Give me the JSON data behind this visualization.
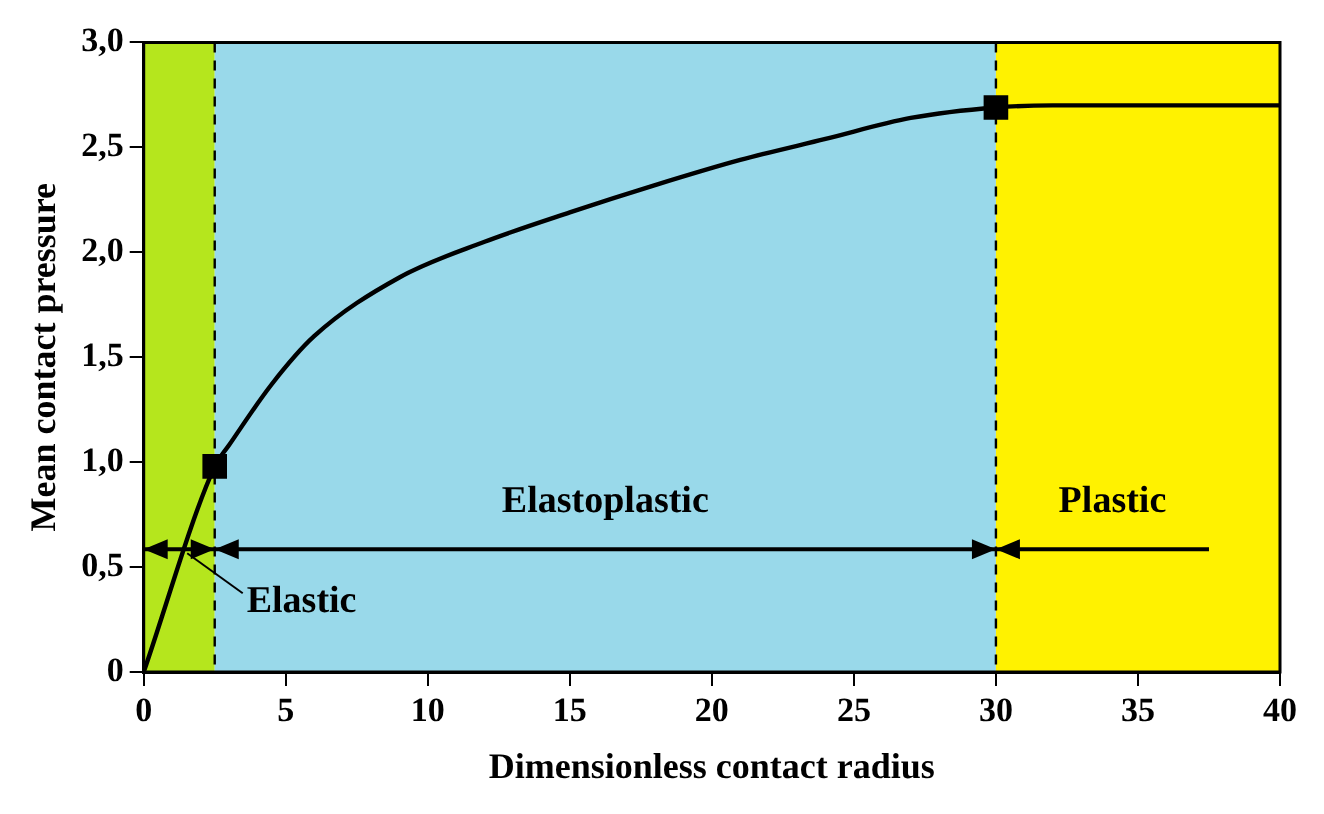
{
  "chart_data": {
    "type": "line",
    "xlabel": "Dimensionless contact radius",
    "ylabel": "Mean contact pressure",
    "xlim": [
      0,
      40
    ],
    "xticks": [
      0,
      5,
      10,
      15,
      20,
      25,
      30,
      35,
      40
    ],
    "ylim": [
      0,
      3
    ],
    "yticks": [
      0,
      {
        "value": 0.5,
        "label": "0,5"
      },
      {
        "value": 1,
        "label": "1,0"
      },
      {
        "value": 1.5,
        "label": "1,5"
      },
      {
        "value": 2,
        "label": "2,0"
      },
      {
        "value": 2.5,
        "label": "2,5"
      },
      {
        "value": 3,
        "label": "3,0"
      }
    ],
    "grid": false,
    "legend": false,
    "bands": [
      {
        "axis": "x",
        "from": 0,
        "to": 2.5,
        "color": "#b5e61d"
      },
      {
        "axis": "x",
        "from": 2.5,
        "to": 30,
        "color": "#99d9ea"
      },
      {
        "axis": "x",
        "from": 30,
        "to": 40,
        "color": "#fff200"
      }
    ],
    "ref_lines": [
      {
        "axis": "x",
        "value": 2.5,
        "color": "#000000",
        "line_style": "dashed"
      },
      {
        "axis": "x",
        "value": 30,
        "color": "#000000",
        "line_style": "dashed"
      }
    ],
    "series": [
      {
        "color": "#000000",
        "marker": "none",
        "x": [
          0,
          2.5,
          3,
          4.5,
          6,
          9,
          12,
          15,
          18,
          21,
          24,
          27,
          30,
          32,
          40
        ],
        "values": [
          0,
          0.98,
          1.08,
          1.37,
          1.6,
          1.88,
          2.05,
          2.19,
          2.32,
          2.44,
          2.54,
          2.64,
          2.69,
          2.7,
          2.7
        ]
      },
      {
        "type": "scatter",
        "color": "#000000",
        "marker": "square",
        "x": [
          2.5,
          30
        ],
        "values": [
          0.98,
          2.69
        ]
      }
    ],
    "annotations": [
      "Elastoplastic",
      "Plastic",
      "Elastic"
    ]
  }
}
